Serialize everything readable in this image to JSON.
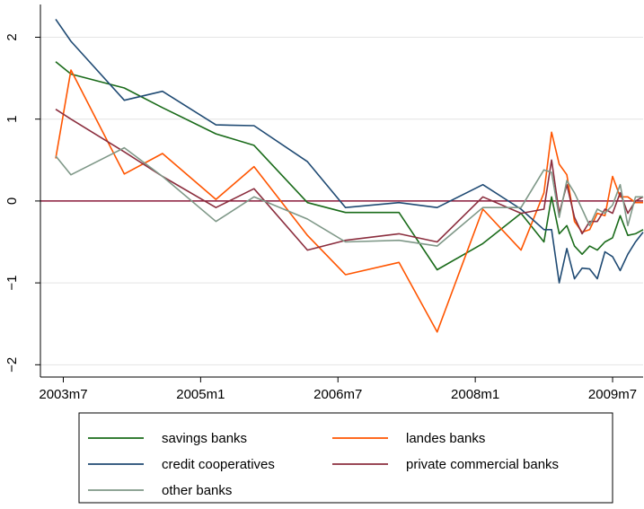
{
  "chart_data": {
    "type": "line",
    "x": [
      "2003m6",
      "2003m8",
      "2004m3",
      "2004m8",
      "2005m3",
      "2005m8",
      "2006m3",
      "2006m8",
      "2007m3",
      "2007m8",
      "2008m2",
      "2008m7",
      "2008m10",
      "2008m11",
      "2008m12",
      "2009m1",
      "2009m2",
      "2009m3",
      "2009m4",
      "2009m5",
      "2009m6",
      "2009m7",
      "2009m8",
      "2009m9",
      "2009m10",
      "2009m11"
    ],
    "series": [
      {
        "name": "savings banks",
        "color": "#1a6b1a",
        "values": [
          1.7,
          1.55,
          1.38,
          1.14,
          0.82,
          0.68,
          -0.02,
          -0.14,
          -0.14,
          -0.84,
          -0.52,
          -0.15,
          -0.5,
          0.05,
          -0.4,
          -0.3,
          -0.55,
          -0.65,
          -0.55,
          -0.6,
          -0.5,
          -0.45,
          -0.18,
          -0.42,
          -0.4,
          -0.35
        ]
      },
      {
        "name": "landes banks",
        "color": "#ff5500",
        "values": [
          0.52,
          1.6,
          0.33,
          0.58,
          0.02,
          0.42,
          -0.42,
          -0.9,
          -0.75,
          -1.6,
          -0.1,
          -0.6,
          0.1,
          0.84,
          0.45,
          0.32,
          -0.25,
          -0.38,
          -0.35,
          -0.15,
          -0.18,
          0.3,
          0.05,
          0.05,
          -0.02,
          -0.02
        ]
      },
      {
        "name": "credit cooperatives",
        "color": "#1f4a73",
        "values": [
          2.22,
          1.95,
          1.23,
          1.34,
          0.93,
          0.92,
          0.48,
          -0.08,
          -0.02,
          -0.08,
          0.2,
          -0.1,
          -0.35,
          -0.35,
          -1.0,
          -0.58,
          -0.95,
          -0.82,
          -0.83,
          -0.95,
          -0.62,
          -0.68,
          -0.85,
          -0.65,
          -0.5,
          -0.38
        ]
      },
      {
        "name": "private commercial banks",
        "color": "#8b2e3e",
        "values": [
          1.12,
          1.0,
          0.6,
          0.3,
          -0.08,
          0.15,
          -0.6,
          -0.48,
          -0.4,
          -0.5,
          0.05,
          -0.15,
          -0.1,
          0.5,
          -0.15,
          0.2,
          -0.2,
          -0.4,
          -0.25,
          -0.25,
          -0.1,
          -0.15,
          0.1,
          -0.15,
          0.0,
          0.05
        ]
      },
      {
        "name": "other banks",
        "color": "#7f9888",
        "values": [
          0.55,
          0.32,
          0.65,
          0.3,
          -0.25,
          0.05,
          -0.22,
          -0.5,
          -0.48,
          -0.55,
          -0.08,
          -0.08,
          0.38,
          0.35,
          -0.2,
          0.25,
          0.1,
          -0.1,
          -0.3,
          -0.1,
          -0.15,
          -0.05,
          0.2,
          -0.3,
          0.05,
          0.05
        ]
      }
    ],
    "reference_line": 0,
    "reference_color": "#8b1a3a",
    "xlim": [
      "2003m4",
      "2009m11"
    ],
    "xticks": [
      "2003m7",
      "2005m1",
      "2006m7",
      "2008m1",
      "2009m7"
    ],
    "ylim": [
      -2.15,
      2.4
    ],
    "yticks": [
      {
        "value": -2,
        "label": "−2"
      },
      {
        "value": -1,
        "label": "−1"
      },
      0,
      1,
      2
    ],
    "grid": true
  }
}
